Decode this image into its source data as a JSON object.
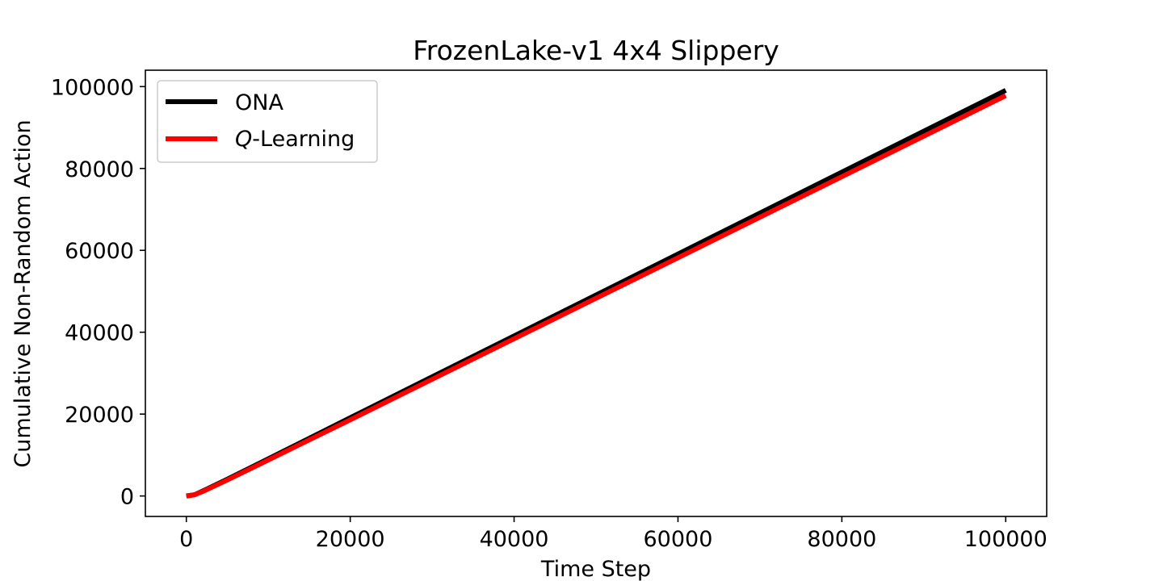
{
  "chart_data": {
    "type": "line",
    "title": "FrozenLake-v1 4x4 Slippery",
    "xlabel": "Time Step",
    "ylabel": "Cumulative Non-Random Action",
    "xlim": [
      -5000,
      105000
    ],
    "ylim": [
      -5000,
      104000
    ],
    "xticks": [
      0,
      20000,
      40000,
      60000,
      80000,
      100000
    ],
    "xtick_labels": [
      "0",
      "20000",
      "40000",
      "60000",
      "80000",
      "100000"
    ],
    "yticks": [
      0,
      20000,
      40000,
      60000,
      80000,
      100000
    ],
    "ytick_labels": [
      "0",
      "20000",
      "40000",
      "60000",
      "80000",
      "100000"
    ],
    "grid": false,
    "legend_position": "top-left",
    "series": [
      {
        "name": "ONA",
        "color": "#000000",
        "x": [
          0,
          1000,
          2000,
          5000,
          10000,
          20000,
          40000,
          60000,
          80000,
          100000
        ],
        "y": [
          0,
          300,
          1200,
          4100,
          9100,
          19100,
          39100,
          59100,
          79100,
          99100
        ]
      },
      {
        "name": "Q-Learning",
        "legend_label": {
          "italic": "Q",
          "rest": "-Learning"
        },
        "color": "#ff0000",
        "x": [
          0,
          1000,
          2000,
          5000,
          10000,
          20000,
          40000,
          60000,
          80000,
          100000
        ],
        "y": [
          0,
          300,
          1100,
          3900,
          8800,
          18600,
          38400,
          58200,
          78000,
          97800
        ]
      }
    ]
  }
}
